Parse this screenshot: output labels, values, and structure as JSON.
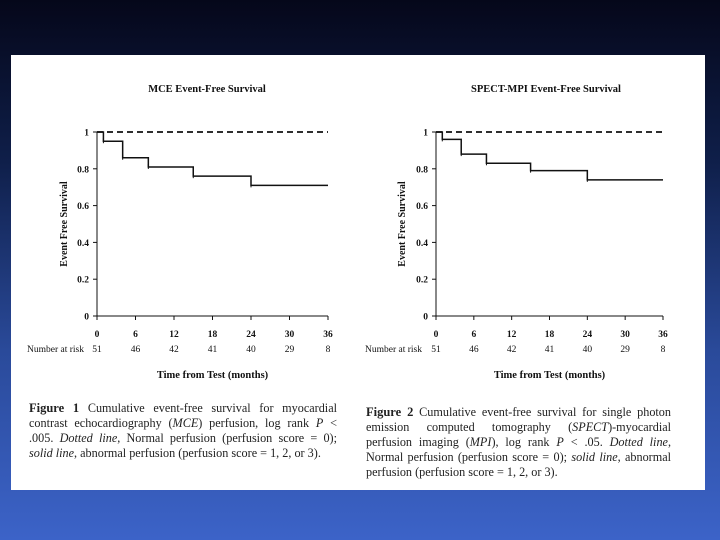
{
  "chart_data": [
    {
      "type": "line",
      "title": "MCE Event-Free Survival",
      "xlabel": "Time from Test (months)",
      "ylabel": "Event Free Survival",
      "x_ticks": [
        0,
        6,
        12,
        18,
        24,
        30,
        36
      ],
      "y_ticks": [
        0,
        0.2,
        0.4,
        0.6,
        0.8,
        1
      ],
      "y_tick_labels": [
        "0",
        "0.2",
        "0.4",
        "0.6",
        "0.8",
        "1"
      ],
      "xlim": [
        0,
        36
      ],
      "ylim": [
        0,
        1
      ],
      "series": [
        {
          "name": "Normal perfusion (perfusion score = 0)",
          "style": "dotted",
          "steps": [
            [
              0,
              1.0
            ],
            [
              36,
              1.0
            ]
          ]
        },
        {
          "name": "Abnormal perfusion (perfusion score = 1, 2, or 3)",
          "style": "solid",
          "steps": [
            [
              0,
              1.0
            ],
            [
              1,
              0.95
            ],
            [
              4,
              0.86
            ],
            [
              8,
              0.81
            ],
            [
              15,
              0.76
            ],
            [
              24,
              0.71
            ],
            [
              36,
              0.71
            ]
          ]
        }
      ],
      "risk_table": {
        "label": "Number at risk",
        "times": [
          0,
          6,
          12,
          18,
          24,
          30,
          36
        ],
        "values": [
          "51",
          "46",
          "42",
          "41",
          "40",
          "29",
          "8"
        ]
      }
    },
    {
      "type": "line",
      "title": "SPECT-MPI Event-Free Survival",
      "xlabel": "Time from Test (months)",
      "ylabel": "Event Free Survival",
      "x_ticks": [
        0,
        6,
        12,
        18,
        24,
        30,
        36
      ],
      "y_ticks": [
        0,
        0.2,
        0.4,
        0.6,
        0.8,
        1
      ],
      "y_tick_labels": [
        "0",
        "0.2",
        "0.4",
        "0.6",
        "0.8",
        "1"
      ],
      "xlim": [
        0,
        36
      ],
      "ylim": [
        0,
        1
      ],
      "series": [
        {
          "name": "Normal perfusion (perfusion score = 0)",
          "style": "dotted",
          "steps": [
            [
              0,
              1.0
            ],
            [
              36,
              1.0
            ]
          ]
        },
        {
          "name": "Abnormal perfusion (perfusion score = 1, 2, or 3)",
          "style": "solid",
          "steps": [
            [
              0,
              1.0
            ],
            [
              1,
              0.96
            ],
            [
              4,
              0.88
            ],
            [
              8,
              0.83
            ],
            [
              15,
              0.79
            ],
            [
              24,
              0.74
            ],
            [
              36,
              0.74
            ]
          ]
        }
      ],
      "risk_table": {
        "label": "Number at risk",
        "times": [
          0,
          6,
          12,
          18,
          24,
          30,
          36
        ],
        "values": [
          "51",
          "46",
          "42",
          "41",
          "40",
          "29",
          "8"
        ]
      }
    }
  ],
  "captions": [
    {
      "label": "Figure 1",
      "text_1": " Cumulative event-free survival for myocardial contrast echocardiography (",
      "abbr_1": "MCE",
      "text_2": ") perfusion, log rank ",
      "p": "P",
      "text_3": " < .005. ",
      "dotted_label": "Dotted line",
      "text_4": ", Normal perfusion (perfusion score = 0); ",
      "solid_label": "solid line",
      "text_5": ", abnormal perfusion (perfusion score = 1, 2, or 3)."
    },
    {
      "label": "Figure 2",
      "text_1": " Cumulative event-free survival for single photon emission computed tomography (",
      "abbr_1": "SPECT",
      "text_2": ")-myocardial perfusion imaging (",
      "abbr_2": "MPI",
      "text_3": "), log rank ",
      "p": "P",
      "text_4": " < .05. ",
      "dotted_label": "Dotted line",
      "text_5": ", Normal perfusion (perfusion score = 0); ",
      "solid_label": "solid line",
      "text_6": ", abnormal perfusion (perfusion score = 1, 2, or 3)."
    }
  ],
  "colors": {
    "line": "#111111",
    "paper": "#ffffff"
  }
}
